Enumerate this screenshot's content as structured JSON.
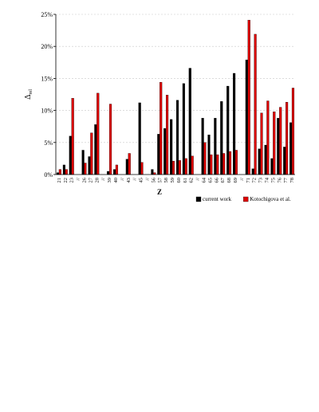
{
  "chart_data": {
    "type": "bar",
    "title": "",
    "xlabel": "Z",
    "ylabel": "Δrel",
    "ylim": [
      0,
      25
    ],
    "yticks": [
      "0%",
      "5%",
      "10%",
      "15%",
      "20%",
      "25%"
    ],
    "grid": true,
    "legend_position": "bottom-right",
    "categories": [
      "21",
      "22",
      "23",
      "//",
      "26",
      "27",
      "28",
      "//",
      "39",
      "40",
      "//",
      "43",
      "//",
      "45",
      "//",
      "56",
      "57",
      "58",
      "59",
      "60",
      "61",
      "62",
      "//",
      "64",
      "65",
      "66",
      "67",
      "68",
      "69",
      "//",
      "71",
      "72",
      "73",
      "74",
      "75",
      "76",
      "77",
      "78"
    ],
    "series": [
      {
        "name": "current work",
        "color": "#000000",
        "values": [
          0.3,
          1.5,
          6.0,
          null,
          3.8,
          2.8,
          7.8,
          null,
          0.5,
          0.8,
          null,
          2.4,
          null,
          11.2,
          null,
          0.8,
          6.3,
          7.2,
          8.6,
          11.6,
          14.2,
          16.6,
          null,
          8.8,
          6.2,
          8.8,
          11.4,
          13.8,
          15.8,
          null,
          17.9,
          0.9,
          4.0,
          4.6,
          2.5,
          8.8,
          4.3,
          8.1
        ]
      },
      {
        "name": "Kotochigova et al.",
        "color": "#dd0000",
        "values": [
          0.8,
          0.8,
          11.9,
          null,
          1.8,
          6.5,
          12.7,
          null,
          11.0,
          1.5,
          null,
          3.3,
          null,
          1.9,
          null,
          0.3,
          14.4,
          12.4,
          2.1,
          2.2,
          2.5,
          2.9,
          null,
          5.0,
          3.1,
          3.1,
          3.3,
          3.6,
          3.8,
          null,
          24.1,
          21.9,
          9.6,
          11.5,
          9.8,
          10.5,
          11.3,
          13.5
        ]
      }
    ]
  }
}
